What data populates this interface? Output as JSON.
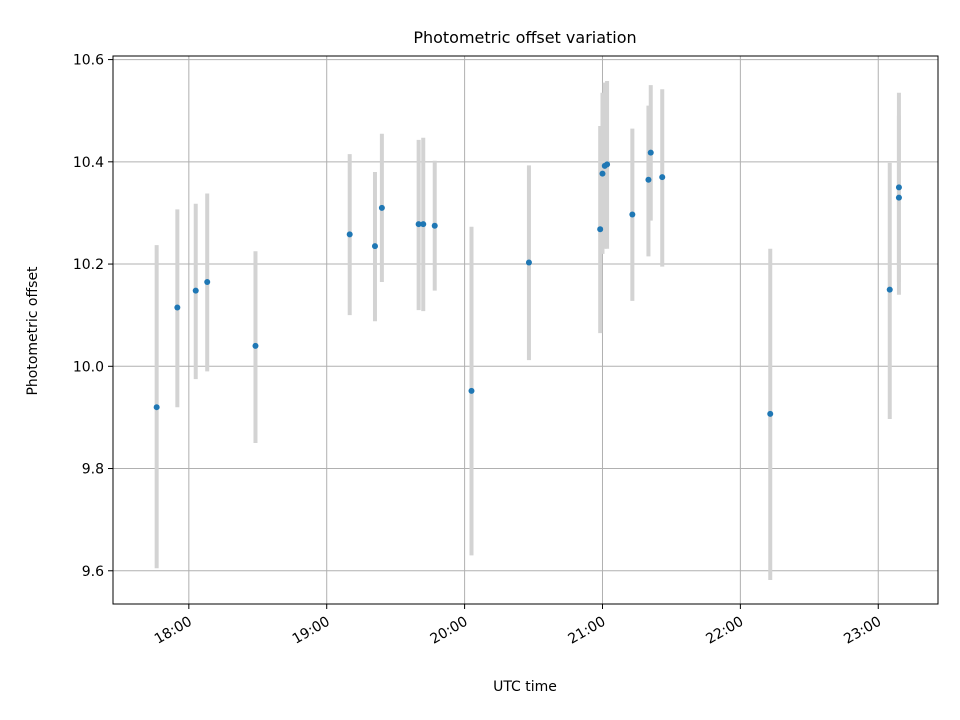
{
  "chart_data": {
    "type": "scatter",
    "title": "Photometric offset variation",
    "xlabel": "UTC time",
    "ylabel": "Photometric offset",
    "x_axis_type": "time",
    "xlim": [
      "17:27",
      "23:26"
    ],
    "ylim": [
      9.535,
      10.607
    ],
    "grid": true,
    "x_ticks": [
      "18:00",
      "19:00",
      "20:00",
      "21:00",
      "22:00",
      "23:00"
    ],
    "y_ticks": [
      9.6,
      9.8,
      10.0,
      10.2,
      10.4,
      10.6
    ],
    "y_tick_labels": [
      "9.6",
      "9.8",
      "10.0",
      "10.2",
      "10.4",
      "10.6"
    ],
    "colors": {
      "points": "#1f77b4",
      "error_bars": "#d3d3d3"
    },
    "points": [
      {
        "x": "17:46",
        "y": 9.92,
        "y_low": 9.605,
        "y_high": 10.237
      },
      {
        "x": "17:55",
        "y": 10.115,
        "y_low": 9.92,
        "y_high": 10.307
      },
      {
        "x": "18:03",
        "y": 10.148,
        "y_low": 9.975,
        "y_high": 10.318
      },
      {
        "x": "18:08",
        "y": 10.165,
        "y_low": 9.99,
        "y_high": 10.338
      },
      {
        "x": "18:29",
        "y": 10.04,
        "y_low": 9.85,
        "y_high": 10.225
      },
      {
        "x": "19:10",
        "y": 10.258,
        "y_low": 10.1,
        "y_high": 10.415
      },
      {
        "x": "19:21",
        "y": 10.235,
        "y_low": 10.088,
        "y_high": 10.38
      },
      {
        "x": "19:24",
        "y": 10.31,
        "y_low": 10.165,
        "y_high": 10.455
      },
      {
        "x": "19:40",
        "y": 10.278,
        "y_low": 10.11,
        "y_high": 10.443
      },
      {
        "x": "19:42",
        "y": 10.278,
        "y_low": 10.108,
        "y_high": 10.447
      },
      {
        "x": "19:47",
        "y": 10.275,
        "y_low": 10.148,
        "y_high": 10.402
      },
      {
        "x": "20:03",
        "y": 9.952,
        "y_low": 9.63,
        "y_high": 10.273
      },
      {
        "x": "20:28",
        "y": 10.203,
        "y_low": 10.012,
        "y_high": 10.393
      },
      {
        "x": "20:59",
        "y": 10.268,
        "y_low": 10.065,
        "y_high": 10.47
      },
      {
        "x": "21:00",
        "y": 10.377,
        "y_low": 10.22,
        "y_high": 10.535
      },
      {
        "x": "21:01",
        "y": 10.392,
        "y_low": 10.23,
        "y_high": 10.555
      },
      {
        "x": "21:02",
        "y": 10.395,
        "y_low": 10.23,
        "y_high": 10.558
      },
      {
        "x": "21:13",
        "y": 10.297,
        "y_low": 10.128,
        "y_high": 10.465
      },
      {
        "x": "21:20",
        "y": 10.365,
        "y_low": 10.215,
        "y_high": 10.51
      },
      {
        "x": "21:21",
        "y": 10.418,
        "y_low": 10.285,
        "y_high": 10.55
      },
      {
        "x": "21:26",
        "y": 10.37,
        "y_low": 10.195,
        "y_high": 10.542
      },
      {
        "x": "22:13",
        "y": 9.907,
        "y_low": 9.582,
        "y_high": 10.23
      },
      {
        "x": "23:05",
        "y": 10.15,
        "y_low": 9.897,
        "y_high": 10.398
      },
      {
        "x": "23:09",
        "y": 10.35,
        "y_low": 10.165,
        "y_high": 10.535
      },
      {
        "x": "23:09",
        "y": 10.33,
        "y_low": 10.14,
        "y_high": 10.49
      }
    ]
  }
}
